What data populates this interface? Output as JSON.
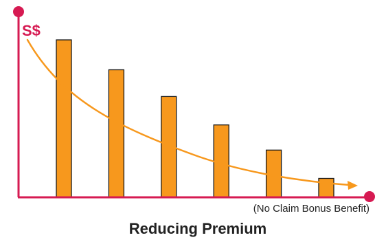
{
  "chart_data": {
    "type": "bar",
    "title": "Reducing Premium",
    "ylabel": "S$",
    "xlabel": "(No Claim Bonus Benefit)",
    "values": [
      100,
      81,
      64,
      46,
      30,
      12
    ],
    "ylim": [
      0,
      100
    ],
    "trend_line": true,
    "grid": false,
    "colors": {
      "bar": "#f7981d",
      "bar_outline": "#1a1a1a",
      "axis": "#d61a52",
      "curve": "#f7981d",
      "label": "#d61a52",
      "title": "#222222"
    }
  }
}
